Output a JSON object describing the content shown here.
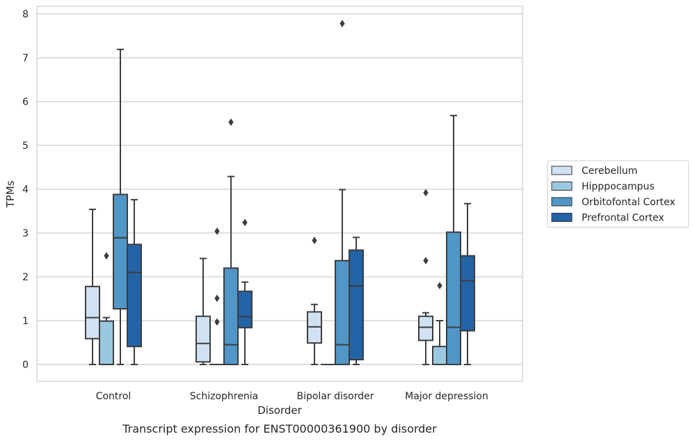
{
  "chart_data": {
    "type": "box",
    "xlabel": "Disorder",
    "ylabel": "TPMs",
    "caption": "Transcript expression for ENST00000361900 by disorder",
    "ylim": [
      -0.38,
      8.18
    ],
    "yticks": [
      0,
      1,
      2,
      3,
      4,
      5,
      6,
      7,
      8
    ],
    "grid": "horizontal",
    "legend_position": "right",
    "categories": [
      "Control",
      "Schizophrenia",
      "Bipolar disorder",
      "Major depression"
    ],
    "series": [
      {
        "name": "Cerebellum",
        "color": "#d0e1f2",
        "boxes": [
          {
            "q1": 0.59,
            "median": 1.07,
            "q3": 1.78,
            "whisker_low": 0.0,
            "whisker_high": 3.54,
            "outliers": []
          },
          {
            "q1": 0.06,
            "median": 0.48,
            "q3": 1.1,
            "whisker_low": 0.0,
            "whisker_high": 2.42,
            "outliers": []
          },
          {
            "q1": 0.49,
            "median": 0.86,
            "q3": 1.2,
            "whisker_low": 0.0,
            "whisker_high": 1.37,
            "outliers": [
              2.83
            ]
          },
          {
            "q1": 0.55,
            "median": 0.85,
            "q3": 1.1,
            "whisker_low": 0.0,
            "whisker_high": 1.18,
            "outliers": [
              2.37,
              3.92
            ]
          }
        ]
      },
      {
        "name": "Hipppocampus",
        "color": "#9ac8e0",
        "boxes": [
          {
            "q1": 0.0,
            "median": 0.0,
            "q3": 0.99,
            "whisker_low": 0.0,
            "whisker_high": 1.07,
            "outliers": [
              2.48
            ]
          },
          {
            "q1": 0.0,
            "median": 0.0,
            "q3": 0.0,
            "whisker_low": 0.0,
            "whisker_high": 0.0,
            "outliers": [
              0.97,
              1.51,
              3.04
            ]
          },
          {
            "q1": 0.0,
            "median": 0.0,
            "q3": 0.0,
            "whisker_low": 0.0,
            "whisker_high": 0.0,
            "outliers": []
          },
          {
            "q1": 0.0,
            "median": 0.0,
            "q3": 0.41,
            "whisker_low": 0.0,
            "whisker_high": 1.0,
            "outliers": [
              1.8
            ]
          }
        ]
      },
      {
        "name": "Orbitofontal Cortex",
        "color": "#5096c6",
        "boxes": [
          {
            "q1": 1.27,
            "median": 2.89,
            "q3": 3.88,
            "whisker_low": 0.0,
            "whisker_high": 7.19,
            "outliers": []
          },
          {
            "q1": 0.0,
            "median": 0.45,
            "q3": 2.2,
            "whisker_low": 0.0,
            "whisker_high": 4.29,
            "outliers": [
              5.53
            ]
          },
          {
            "q1": 0.0,
            "median": 0.45,
            "q3": 2.37,
            "whisker_low": 0.0,
            "whisker_high": 3.99,
            "outliers": [
              7.78
            ]
          },
          {
            "q1": 0.0,
            "median": 0.85,
            "q3": 3.02,
            "whisker_low": 0.0,
            "whisker_high": 5.68,
            "outliers": []
          }
        ]
      },
      {
        "name": "Prefrontal Cortex",
        "color": "#2463a6",
        "boxes": [
          {
            "q1": 0.41,
            "median": 2.1,
            "q3": 2.74,
            "whisker_low": 0.0,
            "whisker_high": 3.76,
            "outliers": []
          },
          {
            "q1": 0.84,
            "median": 1.09,
            "q3": 1.67,
            "whisker_low": 0.0,
            "whisker_high": 1.88,
            "outliers": [
              3.24
            ]
          },
          {
            "q1": 0.11,
            "median": 1.79,
            "q3": 2.61,
            "whisker_low": 0.0,
            "whisker_high": 2.9,
            "outliers": []
          },
          {
            "q1": 0.77,
            "median": 1.91,
            "q3": 2.48,
            "whisker_low": 0.0,
            "whisker_high": 3.67,
            "outliers": []
          }
        ]
      }
    ]
  }
}
